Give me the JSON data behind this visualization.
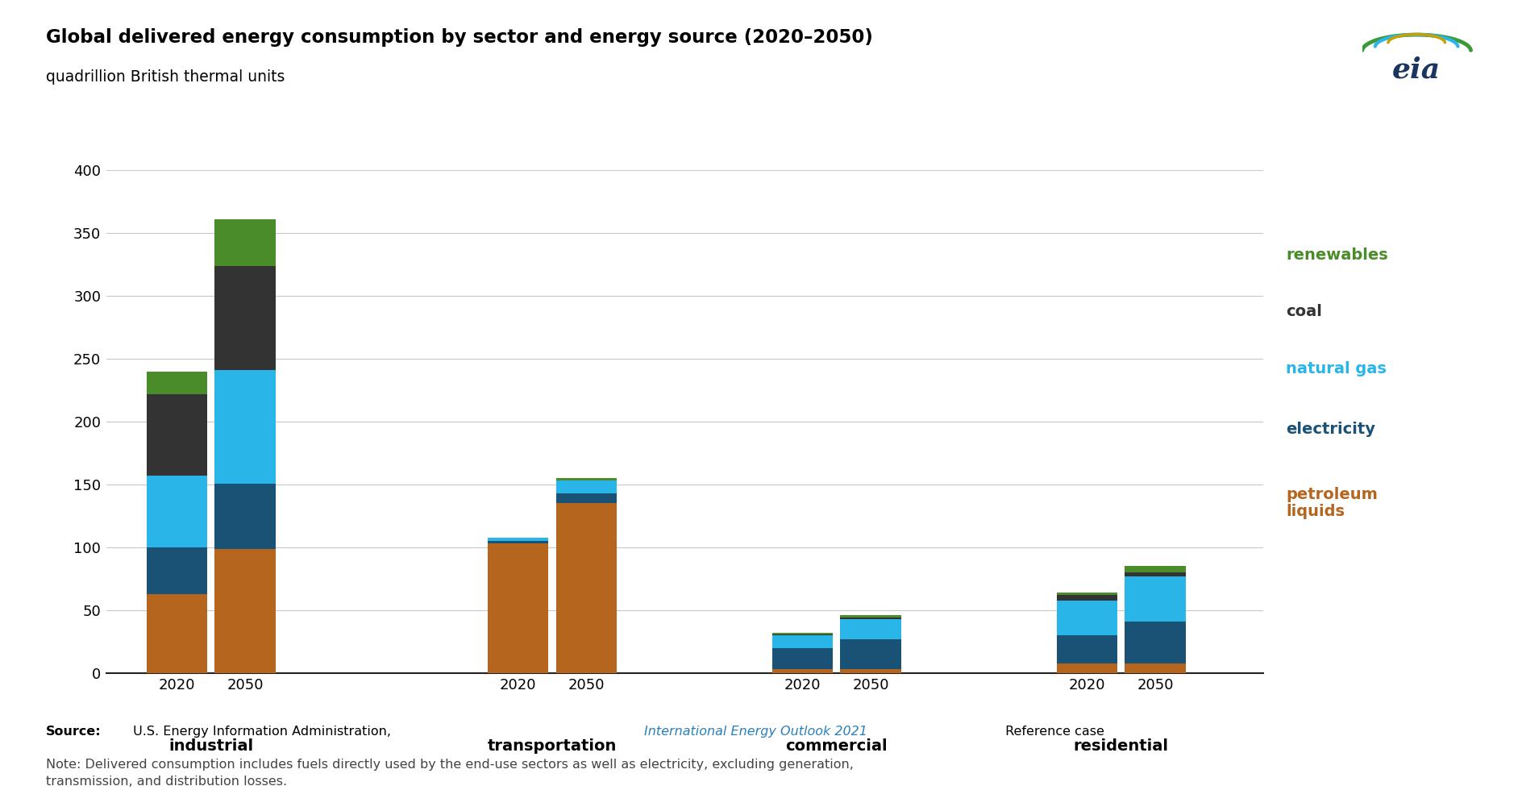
{
  "title": "Global delivered energy consumption by sector and energy source (2020–2050)",
  "subtitle": "quadrillion British thermal units",
  "categories": [
    "industrial",
    "transportation",
    "commercial",
    "residential"
  ],
  "years": [
    "2020",
    "2050"
  ],
  "energy_sources": [
    "petroleum_liquids",
    "electricity",
    "natural_gas",
    "coal",
    "renewables"
  ],
  "colors": {
    "petroleum_liquids": "#b5651d",
    "electricity": "#1a5276",
    "natural_gas": "#29b5e8",
    "coal": "#333333",
    "renewables": "#4a8c2a"
  },
  "legend_colors": {
    "renewables": "#4a8c2a",
    "coal": "#333333",
    "natural_gas": "#29b5e8",
    "electricity": "#1a5276",
    "petroleum_liquids": "#b5651d"
  },
  "data": {
    "industrial": {
      "2020": {
        "petroleum_liquids": 63,
        "electricity": 37,
        "natural_gas": 57,
        "coal": 65,
        "renewables": 18
      },
      "2050": {
        "petroleum_liquids": 99,
        "electricity": 52,
        "natural_gas": 90,
        "coal": 83,
        "renewables": 37
      }
    },
    "transportation": {
      "2020": {
        "petroleum_liquids": 103,
        "electricity": 2,
        "natural_gas": 3,
        "coal": 0,
        "renewables": 0
      },
      "2050": {
        "petroleum_liquids": 135,
        "electricity": 8,
        "natural_gas": 10,
        "coal": 0,
        "renewables": 2
      }
    },
    "commercial": {
      "2020": {
        "petroleum_liquids": 3,
        "electricity": 17,
        "natural_gas": 10,
        "coal": 1,
        "renewables": 1
      },
      "2050": {
        "petroleum_liquids": 3,
        "electricity": 24,
        "natural_gas": 16,
        "coal": 1,
        "renewables": 2
      }
    },
    "residential": {
      "2020": {
        "petroleum_liquids": 8,
        "electricity": 22,
        "natural_gas": 28,
        "coal": 4,
        "renewables": 2
      },
      "2050": {
        "petroleum_liquids": 8,
        "electricity": 33,
        "natural_gas": 36,
        "coal": 3,
        "renewables": 5
      }
    }
  },
  "ylim": [
    0,
    400
  ],
  "yticks": [
    0,
    50,
    100,
    150,
    200,
    250,
    300,
    350,
    400
  ],
  "background_color": "#ffffff",
  "grid_color": "#c8c8c8",
  "legend_order": [
    "renewables",
    "coal",
    "natural_gas",
    "electricity",
    "petroleum_liquids"
  ],
  "legend_labels": [
    "renewables",
    "coal",
    "natural gas",
    "electricity",
    "petroleum\nliquids"
  ]
}
